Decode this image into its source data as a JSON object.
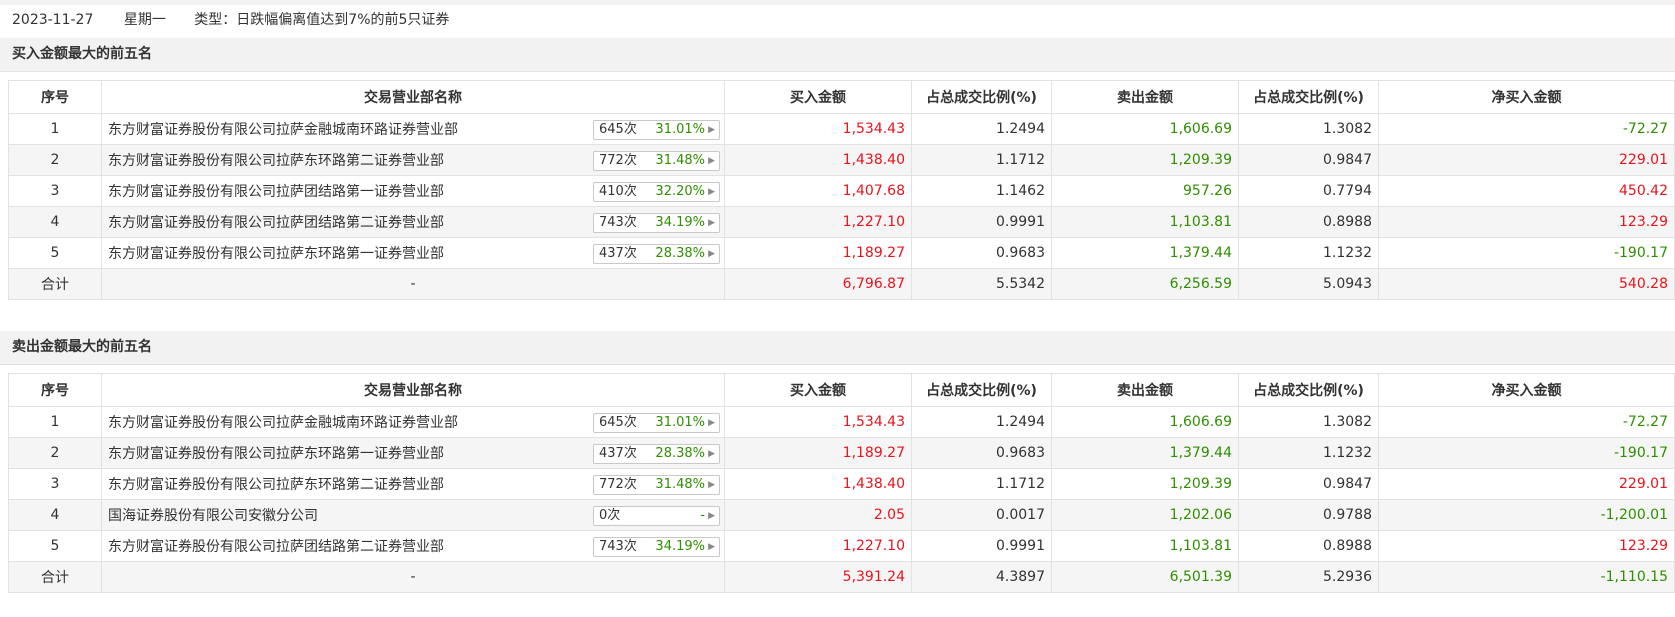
{
  "info": {
    "date": "2023-11-27",
    "weekday": "星期一",
    "type_text": "类型：日跌幅偏离值达到7%的前5只证券"
  },
  "headers": [
    "序号",
    "交易营业部名称",
    "买入金额",
    "占总成交比例(%)",
    "卖出金额",
    "占总成交比例(%)",
    "净买入金额"
  ],
  "buy_section": {
    "title": "买入金额最大的前五名",
    "rows": [
      {
        "idx": "1",
        "name": "东方财富证券股份有限公司拉萨金融城南环路证券营业部",
        "count": "645次",
        "pct": "31.01%",
        "buy": "1,534.43",
        "buy_ratio": "1.2494",
        "sell": "1,606.69",
        "sell_ratio": "1.3082",
        "net": "-72.27",
        "net_sign": "neg"
      },
      {
        "idx": "2",
        "name": "东方财富证券股份有限公司拉萨东环路第二证券营业部",
        "count": "772次",
        "pct": "31.48%",
        "buy": "1,438.40",
        "buy_ratio": "1.1712",
        "sell": "1,209.39",
        "sell_ratio": "0.9847",
        "net": "229.01",
        "net_sign": "pos"
      },
      {
        "idx": "3",
        "name": "东方财富证券股份有限公司拉萨团结路第一证券营业部",
        "count": "410次",
        "pct": "32.20%",
        "buy": "1,407.68",
        "buy_ratio": "1.1462",
        "sell": "957.26",
        "sell_ratio": "0.7794",
        "net": "450.42",
        "net_sign": "pos"
      },
      {
        "idx": "4",
        "name": "东方财富证券股份有限公司拉萨团结路第二证券营业部",
        "count": "743次",
        "pct": "34.19%",
        "buy": "1,227.10",
        "buy_ratio": "0.9991",
        "sell": "1,103.81",
        "sell_ratio": "0.8988",
        "net": "123.29",
        "net_sign": "pos"
      },
      {
        "idx": "5",
        "name": "东方财富证券股份有限公司拉萨东环路第一证券营业部",
        "count": "437次",
        "pct": "28.38%",
        "buy": "1,189.27",
        "buy_ratio": "0.9683",
        "sell": "1,379.44",
        "sell_ratio": "1.1232",
        "net": "-190.17",
        "net_sign": "neg"
      }
    ],
    "total": {
      "label": "合计",
      "name": "-",
      "buy": "6,796.87",
      "buy_ratio": "5.5342",
      "sell": "6,256.59",
      "sell_ratio": "5.0943",
      "net": "540.28",
      "net_sign": "pos"
    }
  },
  "sell_section": {
    "title": "卖出金额最大的前五名",
    "rows": [
      {
        "idx": "1",
        "name": "东方财富证券股份有限公司拉萨金融城南环路证券营业部",
        "count": "645次",
        "pct": "31.01%",
        "buy": "1,534.43",
        "buy_ratio": "1.2494",
        "sell": "1,606.69",
        "sell_ratio": "1.3082",
        "net": "-72.27",
        "net_sign": "neg"
      },
      {
        "idx": "2",
        "name": "东方财富证券股份有限公司拉萨东环路第一证券营业部",
        "count": "437次",
        "pct": "28.38%",
        "buy": "1,189.27",
        "buy_ratio": "0.9683",
        "sell": "1,379.44",
        "sell_ratio": "1.1232",
        "net": "-190.17",
        "net_sign": "neg"
      },
      {
        "idx": "3",
        "name": "东方财富证券股份有限公司拉萨东环路第二证券营业部",
        "count": "772次",
        "pct": "31.48%",
        "buy": "1,438.40",
        "buy_ratio": "1.1712",
        "sell": "1,209.39",
        "sell_ratio": "0.9847",
        "net": "229.01",
        "net_sign": "pos"
      },
      {
        "idx": "4",
        "name": "国海证券股份有限公司安徽分公司",
        "count": "0次",
        "pct": "-",
        "buy": "2.05",
        "buy_ratio": "0.0017",
        "sell": "1,202.06",
        "sell_ratio": "0.9788",
        "net": "-1,200.01",
        "net_sign": "neg"
      },
      {
        "idx": "5",
        "name": "东方财富证券股份有限公司拉萨团结路第二证券营业部",
        "count": "743次",
        "pct": "34.19%",
        "buy": "1,227.10",
        "buy_ratio": "0.9991",
        "sell": "1,103.81",
        "sell_ratio": "0.8988",
        "net": "123.29",
        "net_sign": "pos"
      }
    ],
    "total": {
      "label": "合计",
      "name": "-",
      "buy": "5,391.24",
      "buy_ratio": "4.3897",
      "sell": "6,501.39",
      "sell_ratio": "5.2936",
      "net": "-1,110.15",
      "net_sign": "neg"
    }
  },
  "icons": {
    "badge_arrow": "caret-right-icon"
  },
  "colors": {
    "buy": "#e8141d",
    "sell": "#2f8f00",
    "pos": "#e8141d",
    "neg": "#2f8f00",
    "pct": "#2f8f00",
    "stripe": "#f5f5f5",
    "section_bg": "#f2f2f2"
  }
}
